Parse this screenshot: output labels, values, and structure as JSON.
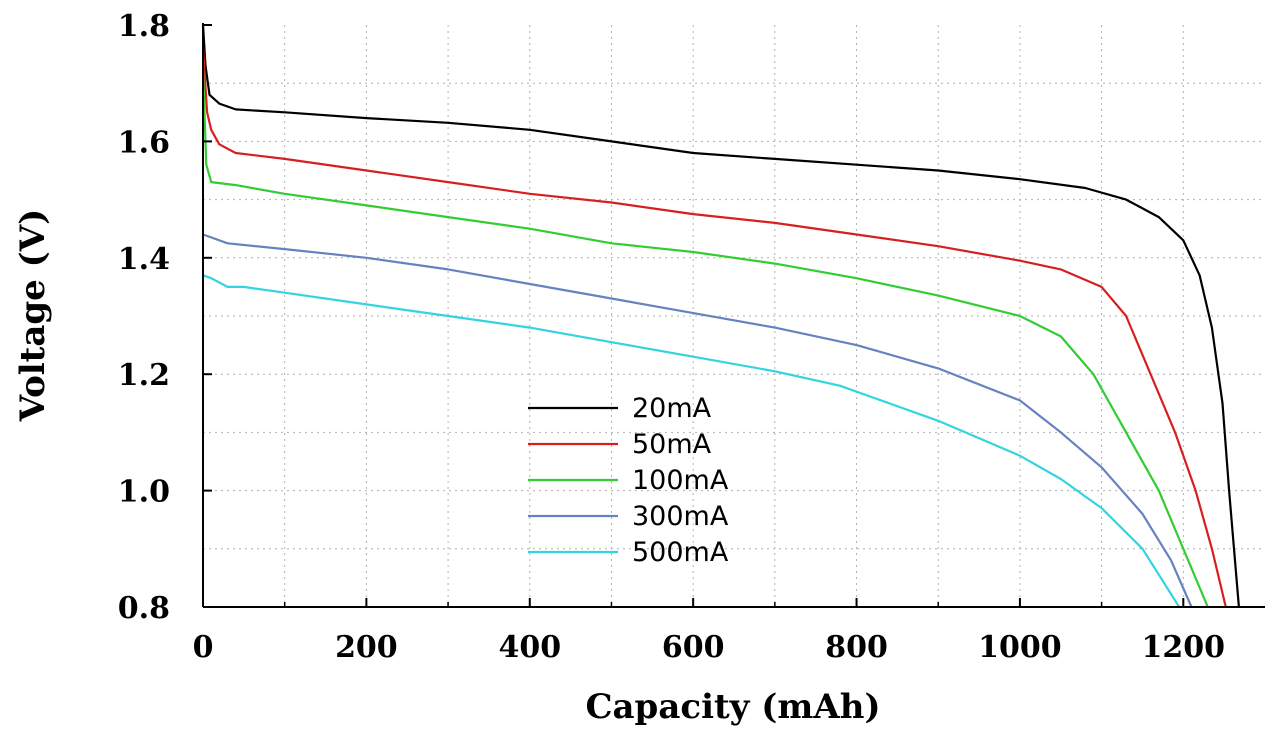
{
  "chart_data": {
    "type": "line",
    "xlabel": "Capacity (mAh)",
    "ylabel": "Voltage (V)",
    "xlim": [
      0,
      1300
    ],
    "ylim": [
      0.8,
      1.8
    ],
    "xticks": [
      0,
      200,
      400,
      600,
      800,
      1000,
      1200
    ],
    "xtick_labels": [
      "0",
      "200",
      "400",
      "600",
      "800",
      "1000",
      "1200"
    ],
    "yticks": [
      0.8,
      1.0,
      1.2,
      1.4,
      1.6,
      1.8
    ],
    "ytick_labels": [
      "0.8",
      "1.0",
      "1.2",
      "1.4",
      "1.6",
      "1.8"
    ],
    "grid": true,
    "legend_position": "center",
    "series": [
      {
        "name": "20mA",
        "color": "#000000",
        "points": [
          [
            0,
            1.8
          ],
          [
            3,
            1.73
          ],
          [
            8,
            1.68
          ],
          [
            20,
            1.665
          ],
          [
            40,
            1.655
          ],
          [
            100,
            1.65
          ],
          [
            200,
            1.64
          ],
          [
            300,
            1.632
          ],
          [
            400,
            1.62
          ],
          [
            500,
            1.6
          ],
          [
            600,
            1.58
          ],
          [
            700,
            1.57
          ],
          [
            800,
            1.56
          ],
          [
            900,
            1.55
          ],
          [
            1000,
            1.535
          ],
          [
            1080,
            1.52
          ],
          [
            1130,
            1.5
          ],
          [
            1170,
            1.47
          ],
          [
            1200,
            1.43
          ],
          [
            1220,
            1.37
          ],
          [
            1235,
            1.28
          ],
          [
            1248,
            1.15
          ],
          [
            1256,
            1.0
          ],
          [
            1262,
            0.9
          ],
          [
            1268,
            0.8
          ]
        ]
      },
      {
        "name": "50mA",
        "color": "#d62020",
        "points": [
          [
            0,
            1.76
          ],
          [
            5,
            1.65
          ],
          [
            10,
            1.62
          ],
          [
            20,
            1.595
          ],
          [
            40,
            1.58
          ],
          [
            100,
            1.57
          ],
          [
            200,
            1.55
          ],
          [
            300,
            1.53
          ],
          [
            400,
            1.51
          ],
          [
            500,
            1.495
          ],
          [
            600,
            1.475
          ],
          [
            700,
            1.46
          ],
          [
            800,
            1.44
          ],
          [
            900,
            1.42
          ],
          [
            1000,
            1.395
          ],
          [
            1050,
            1.38
          ],
          [
            1100,
            1.35
          ],
          [
            1130,
            1.3
          ],
          [
            1160,
            1.2
          ],
          [
            1190,
            1.1
          ],
          [
            1215,
            1.0
          ],
          [
            1235,
            0.9
          ],
          [
            1252,
            0.8
          ]
        ]
      },
      {
        "name": "100mA",
        "color": "#33cc33",
        "points": [
          [
            0,
            1.72
          ],
          [
            4,
            1.56
          ],
          [
            10,
            1.53
          ],
          [
            40,
            1.525
          ],
          [
            100,
            1.51
          ],
          [
            200,
            1.49
          ],
          [
            300,
            1.47
          ],
          [
            400,
            1.45
          ],
          [
            500,
            1.425
          ],
          [
            600,
            1.41
          ],
          [
            700,
            1.39
          ],
          [
            800,
            1.365
          ],
          [
            900,
            1.335
          ],
          [
            1000,
            1.3
          ],
          [
            1050,
            1.265
          ],
          [
            1090,
            1.2
          ],
          [
            1130,
            1.1
          ],
          [
            1170,
            1.0
          ],
          [
            1200,
            0.9
          ],
          [
            1230,
            0.8
          ]
        ]
      },
      {
        "name": "300mA",
        "color": "#6682c0",
        "points": [
          [
            0,
            1.44
          ],
          [
            10,
            1.435
          ],
          [
            30,
            1.425
          ],
          [
            100,
            1.415
          ],
          [
            200,
            1.4
          ],
          [
            300,
            1.38
          ],
          [
            400,
            1.355
          ],
          [
            500,
            1.33
          ],
          [
            600,
            1.305
          ],
          [
            700,
            1.28
          ],
          [
            800,
            1.25
          ],
          [
            900,
            1.21
          ],
          [
            1000,
            1.155
          ],
          [
            1050,
            1.1
          ],
          [
            1100,
            1.04
          ],
          [
            1150,
            0.96
          ],
          [
            1185,
            0.88
          ],
          [
            1210,
            0.8
          ]
        ]
      },
      {
        "name": "500mA",
        "color": "#33d4e0",
        "points": [
          [
            0,
            1.37
          ],
          [
            10,
            1.365
          ],
          [
            30,
            1.35
          ],
          [
            50,
            1.35
          ],
          [
            100,
            1.34
          ],
          [
            200,
            1.32
          ],
          [
            300,
            1.3
          ],
          [
            400,
            1.28
          ],
          [
            500,
            1.255
          ],
          [
            600,
            1.23
          ],
          [
            700,
            1.205
          ],
          [
            780,
            1.18
          ],
          [
            820,
            1.16
          ],
          [
            900,
            1.12
          ],
          [
            1000,
            1.06
          ],
          [
            1050,
            1.02
          ],
          [
            1100,
            0.97
          ],
          [
            1150,
            0.9
          ],
          [
            1195,
            0.8
          ]
        ]
      }
    ]
  }
}
